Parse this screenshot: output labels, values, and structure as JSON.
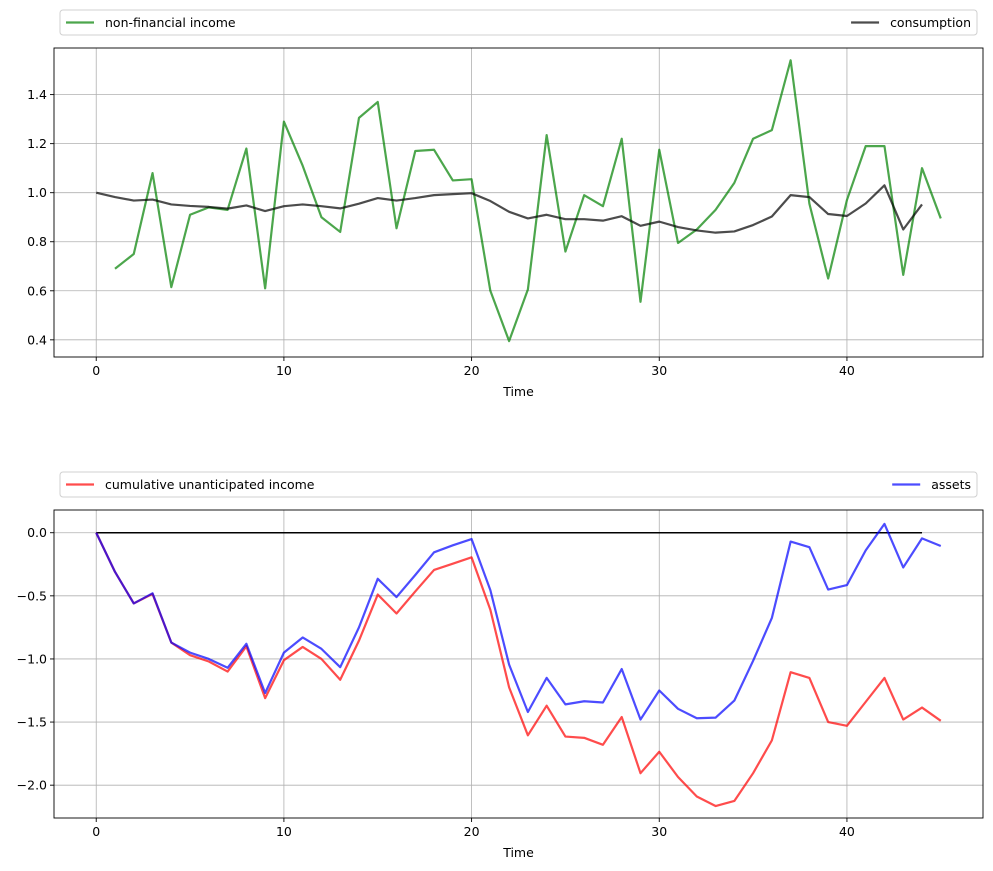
{
  "chart_data": [
    {
      "type": "line",
      "xlabel": "Time",
      "xlim": [
        -2.25,
        47.25
      ],
      "ylim": [
        0.33,
        1.59
      ],
      "xticks": [
        0,
        10,
        20,
        30,
        40
      ],
      "yticks": [
        0.4,
        0.6,
        0.8,
        1.0,
        1.2,
        1.4
      ],
      "ytick_labels": [
        "0.4",
        "0.6",
        "0.8",
        "1.0",
        "1.2",
        "1.4"
      ],
      "grid": true,
      "legend_placement": "above plot, expanded",
      "series": [
        {
          "name": "non-financial income",
          "color": "#008000",
          "x_start": 1,
          "values": [
            0.69,
            0.75,
            1.08,
            0.615,
            0.91,
            0.94,
            0.93,
            1.18,
            0.61,
            1.29,
            1.11,
            0.9,
            0.84,
            1.305,
            1.37,
            0.855,
            1.17,
            1.175,
            1.05,
            1.055,
            0.6,
            0.395,
            0.605,
            1.235,
            0.76,
            0.99,
            0.945,
            1.22,
            0.555,
            1.175,
            0.795,
            0.85,
            0.93,
            1.04,
            1.22,
            1.255,
            1.54,
            0.955,
            0.65,
            0.97,
            1.19,
            1.19,
            0.665,
            1.1,
            0.895
          ]
        },
        {
          "name": "consumption",
          "color": "#000000",
          "x_start": 0,
          "values": [
            1.0,
            0.982,
            0.968,
            0.972,
            0.952,
            0.946,
            0.942,
            0.935,
            0.948,
            0.925,
            0.945,
            0.952,
            0.945,
            0.936,
            0.955,
            0.978,
            0.968,
            0.978,
            0.99,
            0.994,
            0.998,
            0.966,
            0.922,
            0.895,
            0.91,
            0.892,
            0.892,
            0.886,
            0.904,
            0.865,
            0.882,
            0.86,
            0.846,
            0.837,
            0.842,
            0.868,
            0.903,
            0.99,
            0.982,
            0.913,
            0.905,
            0.956,
            1.03,
            0.85,
            0.952
          ]
        }
      ]
    },
    {
      "type": "line",
      "xlabel": "Time",
      "xlim": [
        -2.25,
        47.25
      ],
      "ylim": [
        -2.26,
        0.18
      ],
      "xticks": [
        0,
        10,
        20,
        30,
        40
      ],
      "yticks": [
        0.0,
        -0.5,
        -1.0,
        -1.5,
        -2.0
      ],
      "ytick_labels": [
        "0.0",
        "−0.5",
        "−1.0",
        "−1.5",
        "−2.0"
      ],
      "grid": true,
      "legend_placement": "above plot, expanded",
      "zero_line": {
        "color": "#000000",
        "x": [
          0,
          44
        ],
        "y": 0
      },
      "series": [
        {
          "name": "cumulative unanticipated income",
          "color": "#ff0000",
          "x_start": 0,
          "values": [
            0.0,
            -0.31,
            -0.56,
            -0.485,
            -0.87,
            -0.97,
            -1.02,
            -1.1,
            -0.9,
            -1.31,
            -1.01,
            -0.905,
            -1.0,
            -1.165,
            -0.855,
            -0.49,
            -0.64,
            -0.465,
            -0.295,
            -0.245,
            -0.195,
            -0.61,
            -1.225,
            -1.605,
            -1.37,
            -1.615,
            -1.625,
            -1.68,
            -1.46,
            -1.905,
            -1.735,
            -1.935,
            -2.09,
            -2.165,
            -2.125,
            -1.905,
            -1.645,
            -1.105,
            -1.15,
            -1.5,
            -1.53,
            -1.34,
            -1.15,
            -1.48,
            -1.385,
            -1.49
          ]
        },
        {
          "name": "assets",
          "color": "#0000ff",
          "x_start": 0,
          "values": [
            0.0,
            -0.31,
            -0.56,
            -0.48,
            -0.87,
            -0.95,
            -1.0,
            -1.07,
            -0.88,
            -1.27,
            -0.95,
            -0.83,
            -0.92,
            -1.065,
            -0.75,
            -0.365,
            -0.51,
            -0.335,
            -0.155,
            -0.1,
            -0.05,
            -0.455,
            -1.045,
            -1.42,
            -1.15,
            -1.36,
            -1.335,
            -1.345,
            -1.08,
            -1.48,
            -1.25,
            -1.395,
            -1.47,
            -1.465,
            -1.33,
            -1.015,
            -0.675,
            -0.07,
            -0.115,
            -0.45,
            -0.415,
            -0.14,
            0.07,
            -0.275,
            -0.045,
            -0.105
          ]
        }
      ]
    }
  ]
}
